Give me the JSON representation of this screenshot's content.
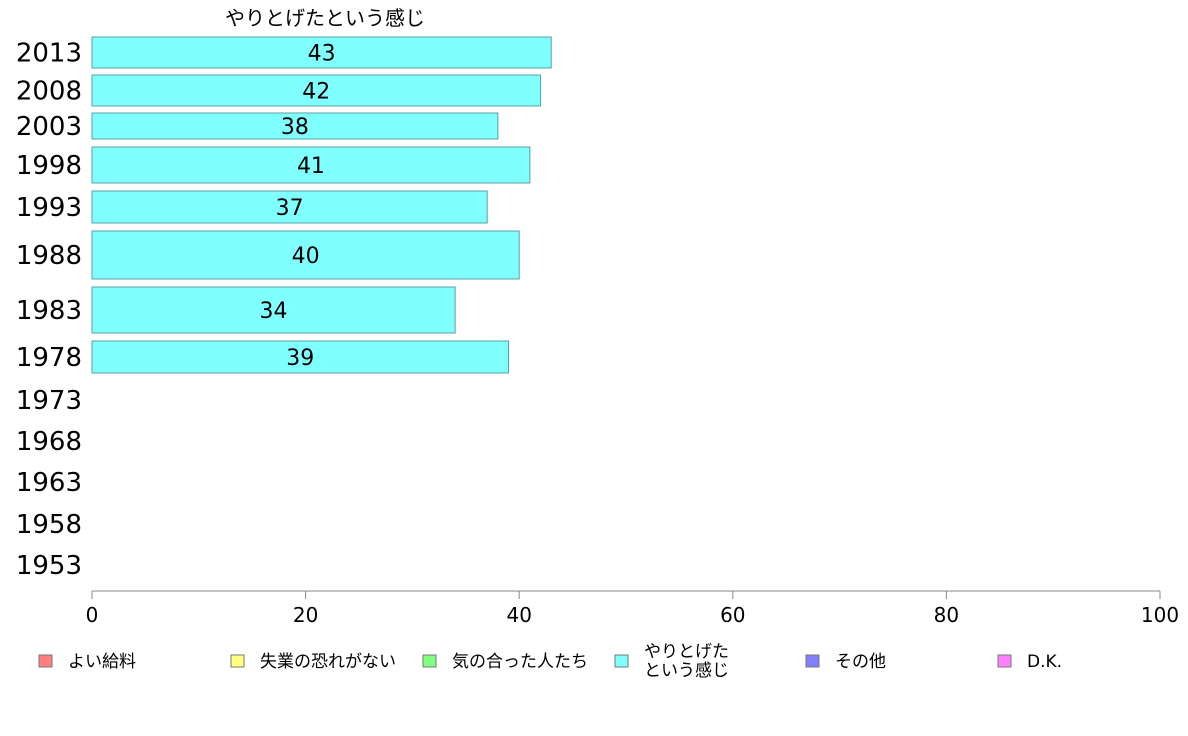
{
  "chart_data": {
    "type": "bar",
    "orientation": "horizontal",
    "title": "やりとげたという感じ",
    "categories": [
      "2013",
      "2008",
      "2003",
      "1998",
      "1993",
      "1988",
      "1983",
      "1978",
      "1973",
      "1968",
      "1963",
      "1958",
      "1953"
    ],
    "series": [
      {
        "name": "やりとげたという感じ",
        "color": "#80ffff",
        "values": [
          43,
          42,
          38,
          41,
          37,
          40,
          34,
          39,
          null,
          null,
          null,
          null,
          null
        ]
      }
    ],
    "xlim": [
      0,
      100
    ],
    "xticks": [
      "0",
      "20",
      "40",
      "60",
      "80",
      "100"
    ],
    "grid": false,
    "legend": {
      "placement": "bottom",
      "items": [
        {
          "label": "よい給料",
          "color": "#ff8080"
        },
        {
          "label": "失業の恐れがない",
          "color": "#ffff80"
        },
        {
          "label": "気の合った人たち",
          "color": "#80ff80"
        },
        {
          "label": "やりとげた\nという感じ",
          "color": "#80ffff"
        },
        {
          "label": "その他",
          "color": "#8080ff"
        },
        {
          "label": "D.K.",
          "color": "#ff80ff"
        }
      ]
    }
  }
}
